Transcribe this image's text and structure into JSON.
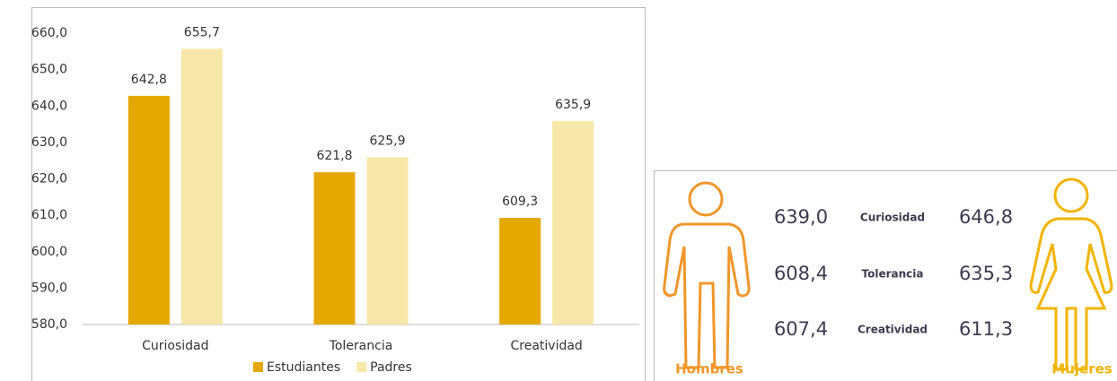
{
  "chart_data": {
    "type": "bar",
    "categories": [
      "Curiosidad",
      "Tolerancia",
      "Creatividad"
    ],
    "series": [
      {
        "name": "Estudiantes",
        "color": "#e5a800",
        "values": [
          642.8,
          621.8,
          609.3
        ],
        "value_labels": [
          "642,8",
          "621,8",
          "609,3"
        ]
      },
      {
        "name": "Padres",
        "color": "#f7e7a9",
        "values": [
          655.7,
          625.9,
          635.9
        ],
        "value_labels": [
          "655,7",
          "625,9",
          "635,9"
        ]
      }
    ],
    "ylim": [
      580,
      660
    ],
    "yticks": [
      {
        "value": 580,
        "label": "580,0"
      },
      {
        "value": 590,
        "label": "590,0"
      },
      {
        "value": 600,
        "label": "600,0"
      },
      {
        "value": 610,
        "label": "610,0"
      },
      {
        "value": 620,
        "label": "620,0"
      },
      {
        "value": 630,
        "label": "630,0"
      },
      {
        "value": 640,
        "label": "640,0"
      },
      {
        "value": 650,
        "label": "650,0"
      },
      {
        "value": 660,
        "label": "660,0"
      }
    ],
    "grid": false,
    "legend": "bottom"
  },
  "panel": {
    "left_label": "Hombres",
    "right_label": "Mujeres",
    "rows": [
      {
        "label": "Curiosidad",
        "hombres": "639,0",
        "mujeres": "646,8"
      },
      {
        "label": "Tolerancia",
        "hombres": "608,4",
        "mujeres": "635,3"
      },
      {
        "label": "Creatividad",
        "hombres": "607,4",
        "mujeres": "611,3"
      }
    ]
  }
}
